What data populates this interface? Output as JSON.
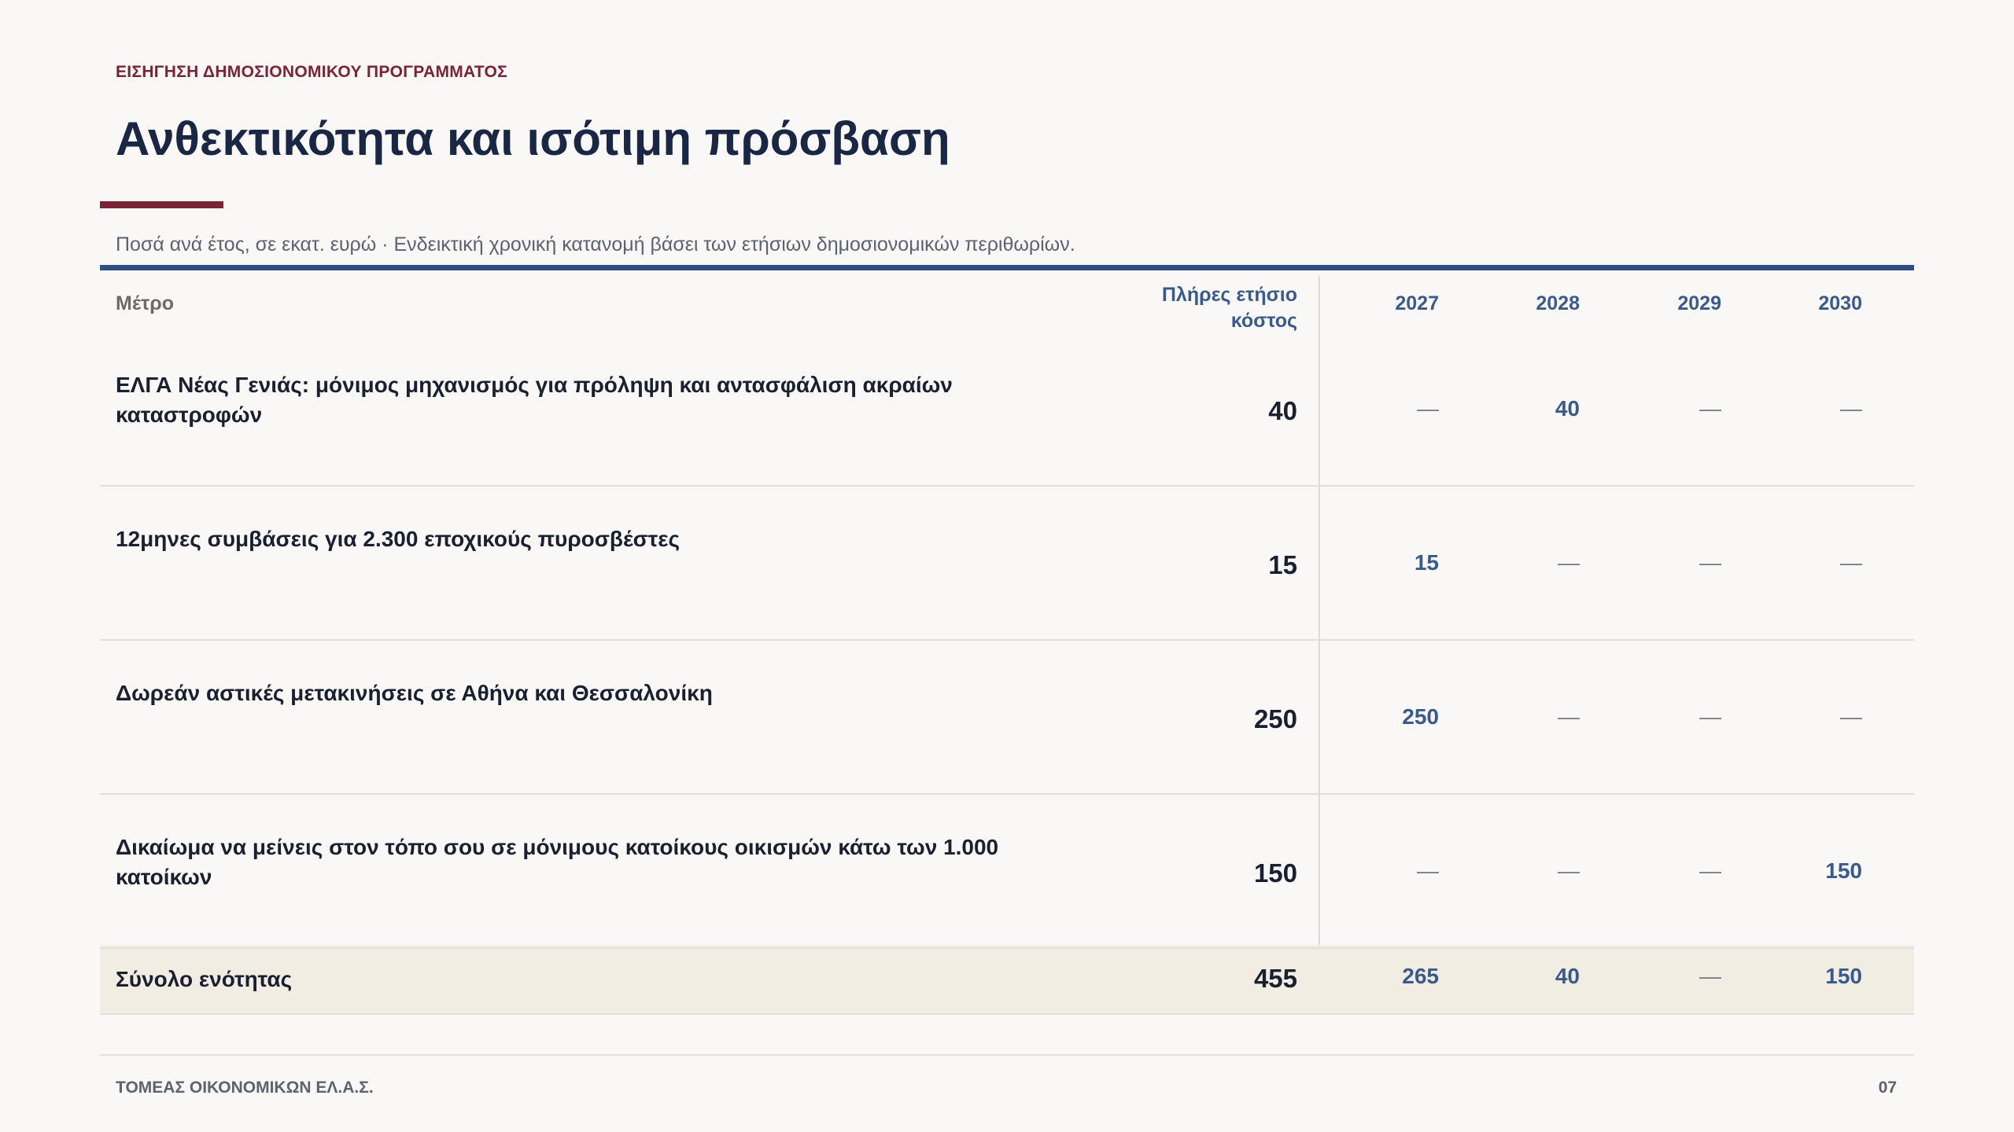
{
  "header": {
    "kicker": "ΕΙΣΗΓΗΣΗ ΔΗΜΟΣΙΟΝΟΜΙΚΟΥ ΠΡΟΓΡΑΜΜΑΤΟΣ",
    "title": "Ανθεκτικότητα και ισότιμη πρόσβαση",
    "subtitle": "Ποσά ανά έτος, σε εκατ. ευρώ · Ενδεικτική χρονική κατανομή βάσει των ετήσιων δημοσιονομικών περιθωρίων."
  },
  "table": {
    "columns": [
      "Μέτρο",
      "Πλήρες ετήσιο κόστος",
      "2027",
      "2028",
      "2029",
      "2030"
    ],
    "rows": [
      [
        "ΕΛΓΑ Νέας Γενιάς: μόνιμος μηχανισμός για πρόληψη και αντασφάλιση ακραίων καταστροφών",
        40,
        "—",
        40,
        "—",
        "—"
      ],
      [
        "12μηνες συμβάσεις για 2.300 εποχικούς πυροσβέστες",
        15,
        15,
        "—",
        "—",
        "—"
      ],
      [
        "Δωρεάν αστικές μετακινήσεις σε Αθήνα και Θεσσαλονίκη",
        250,
        250,
        "—",
        "—",
        "—"
      ],
      [
        "Δικαίωμα να μείνεις στον τόπο σου σε μόνιμους κατοίκους οικισμών κάτω των 1.000 κατοίκων",
        150,
        "—",
        "—",
        "—",
        150
      ]
    ],
    "total": [
      "Σύνολο ενότητας",
      455,
      265,
      40,
      "—",
      150
    ]
  },
  "footer": {
    "left": "ΤΟΜΕΑΣ ΟΙΚΟΝΟΜΙΚΩΝ ΕΛ.Α.Σ.",
    "page": "07"
  }
}
